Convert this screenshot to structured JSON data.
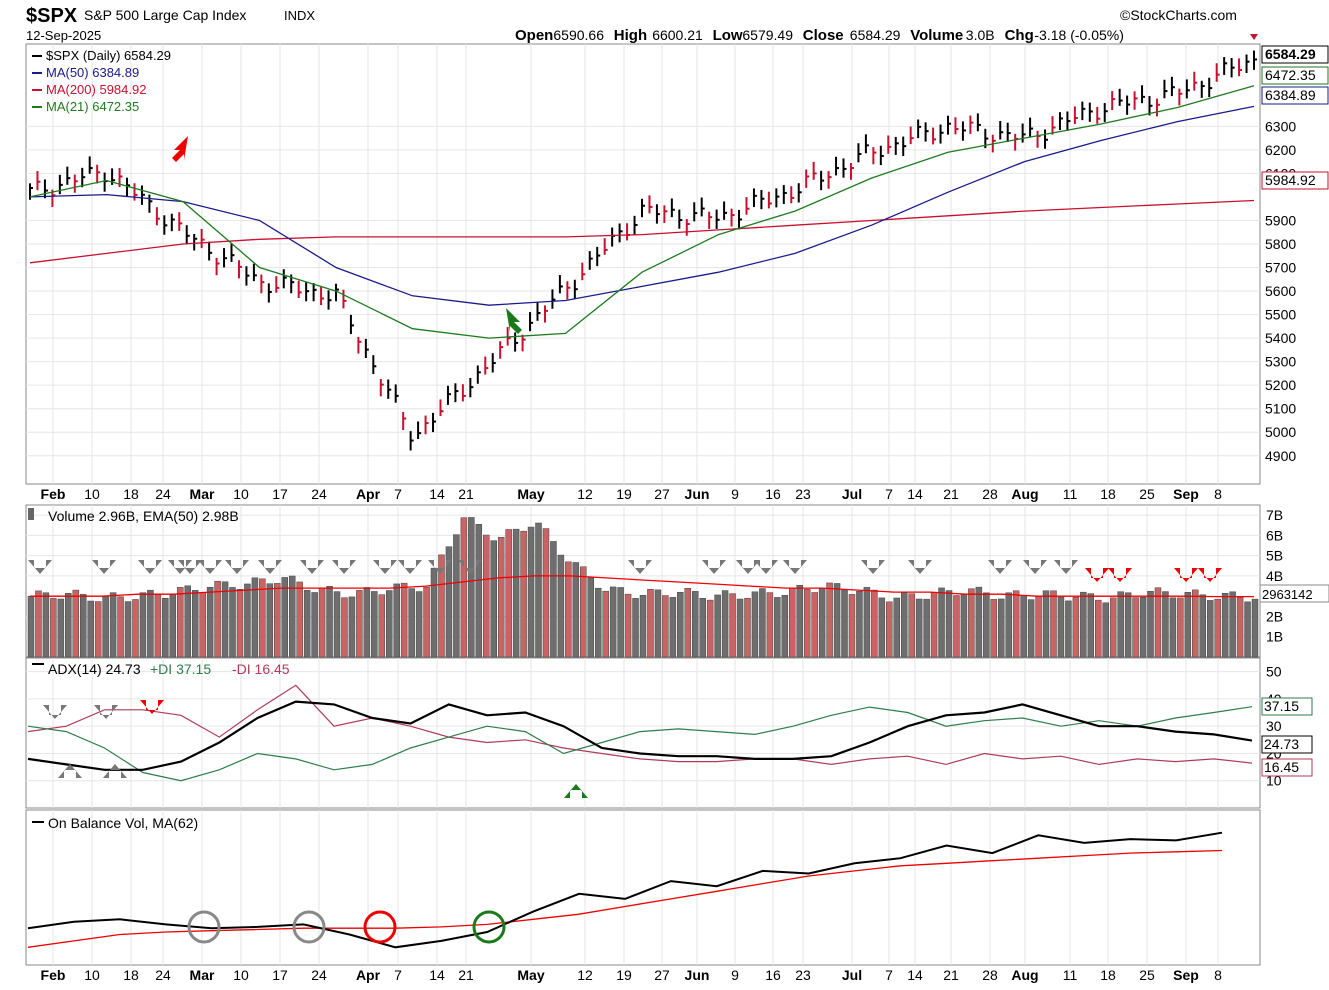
{
  "header": {
    "symbol": "$SPX",
    "name": "S&P 500 Large Cap Index",
    "exchange": "INDX",
    "date": "12-Sep-2025",
    "brand": "©StockCharts.com",
    "ohlc": [
      {
        "label": "Open",
        "value": "6590.66"
      },
      {
        "label": "High",
        "value": "6600.21"
      },
      {
        "label": "Low",
        "value": "6579.49"
      },
      {
        "label": "Close",
        "value": "6584.29"
      },
      {
        "label": "Volume",
        "value": "3.0B"
      },
      {
        "label": "Chg",
        "value": "-3.18 (-0.05%)"
      }
    ]
  },
  "price_panel": {
    "legend": [
      {
        "text": "$SPX (Daily) 6584.29",
        "color": "#000000"
      },
      {
        "text": "MA(50) 6384.89",
        "color": "#1a1a8c"
      },
      {
        "text": "MA(200) 5984.92",
        "color": "#c8102e"
      },
      {
        "text": "MA(21) 6472.35",
        "color": "#1f7a1f"
      }
    ],
    "badges": [
      "6584.29",
      "6472.35",
      "6384.89",
      "5984.92"
    ],
    "axis_ticks": [
      "6300",
      "6200",
      "6100",
      "5900",
      "5800",
      "5700",
      "5600",
      "5500",
      "5400",
      "5300",
      "5200",
      "5100",
      "5000",
      "4900"
    ]
  },
  "volume_panel": {
    "legend": "Volume 2.96B, EMA(50) 2.98B",
    "badge": "2963142",
    "axis_ticks": [
      "7B",
      "6B",
      "5B",
      "4B",
      "2B",
      "1B"
    ]
  },
  "adx_panel": {
    "legend_adx": "ADX(14) 24.73",
    "legend_pdi": "+DI 37.15",
    "legend_mdi": "-DI 16.45",
    "badges": [
      "37.15",
      "24.73",
      "16.45"
    ],
    "axis_ticks": [
      "50",
      "40",
      "30",
      "20",
      "10"
    ]
  },
  "obv_panel": {
    "legend": "On Balance Vol, MA(62)"
  },
  "date_axis": [
    "Feb",
    "10",
    "18",
    "24",
    "Mar",
    "10",
    "17",
    "24",
    "Apr",
    "7",
    "14",
    "21",
    "May",
    "12",
    "19",
    "27",
    "Jun",
    "9",
    "16",
    "23",
    "Jul",
    "7",
    "14",
    "21",
    "28",
    "Aug",
    "11",
    "18",
    "25",
    "Sep",
    "8"
  ],
  "colors": {
    "up": "#000000",
    "down": "#c8102e",
    "ma50": "#1a1a8c",
    "ma200": "#c8102e",
    "ma21": "#1f7a1f",
    "vol_down": "#c86464",
    "vol_up": "#6e6e6e",
    "grid": "#e6e6e6"
  },
  "chart_data": [
    {
      "type": "line",
      "title": "$SPX (Daily)",
      "x_range": [
        "Feb",
        "Sep 12"
      ],
      "ylim": [
        4800,
        6650
      ],
      "series": [
        {
          "name": "$SPX (Daily)",
          "x": [
            "Feb",
            "Feb 18",
            "Mar",
            "Mar 17",
            "Apr",
            "Apr 7",
            "Apr 21",
            "May",
            "May 19",
            "Jun",
            "Jun 23",
            "Jul",
            "Jul 21",
            "Aug",
            "Aug 11",
            "Aug 25",
            "Sep 12"
          ],
          "values": [
            6020,
            6110,
            5850,
            5640,
            5580,
            4980,
            5290,
            5610,
            5940,
            5910,
            6030,
            6190,
            6300,
            6250,
            6380,
            6440,
            6584.29
          ]
        },
        {
          "name": "MA(50)",
          "values": [
            6000,
            6010,
            5980,
            5900,
            5700,
            5580,
            5540,
            5560,
            5620,
            5680,
            5760,
            5880,
            6020,
            6150,
            6240,
            6320,
            6384.89
          ]
        },
        {
          "name": "MA(200)",
          "values": [
            5720,
            5760,
            5800,
            5820,
            5830,
            5830,
            5830,
            5830,
            5840,
            5860,
            5880,
            5900,
            5920,
            5940,
            5955,
            5970,
            5984.92
          ]
        },
        {
          "name": "MA(21)",
          "values": [
            6000,
            6070,
            5980,
            5700,
            5600,
            5440,
            5400,
            5420,
            5680,
            5840,
            5940,
            6080,
            6190,
            6250,
            6310,
            6380,
            6472.35
          ]
        }
      ]
    },
    {
      "type": "bar",
      "title": "Volume",
      "ylim": [
        0,
        7
      ],
      "series": [
        {
          "name": "Volume",
          "values": [
            3.0,
            3.1,
            2.9,
            3.0,
            3.2,
            3.5,
            3.6,
            3.9,
            3.3,
            3.1,
            3.4,
            3.5,
            6.9,
            5.8,
            6.7,
            4.7,
            3.3,
            3.1,
            3.2,
            3.0,
            3.1,
            3.2,
            3.5,
            3.3,
            2.9,
            3.1,
            3.3,
            3.0,
            3.1,
            3.0,
            2.9,
            3.2,
            3.1,
            3.0,
            2.96
          ]
        },
        {
          "name": "EMA(50)",
          "values": [
            3.0,
            3.0,
            3.0,
            3.1,
            3.1,
            3.2,
            3.3,
            3.4,
            3.4,
            3.4,
            3.4,
            3.5,
            3.7,
            3.9,
            4.0,
            4.0,
            3.9,
            3.8,
            3.7,
            3.6,
            3.5,
            3.4,
            3.4,
            3.3,
            3.2,
            3.2,
            3.1,
            3.1,
            3.0,
            3.0,
            3.0,
            3.0,
            3.0,
            2.98,
            2.98
          ]
        }
      ]
    },
    {
      "type": "line",
      "title": "ADX(14)",
      "ylim": [
        0,
        50
      ],
      "series": [
        {
          "name": "ADX(14)",
          "values": [
            18,
            16,
            14,
            14,
            17,
            24,
            33,
            39,
            38,
            33,
            31,
            38,
            34,
            35,
            30,
            22,
            20,
            19,
            19,
            18,
            18,
            19,
            24,
            30,
            34,
            35,
            38,
            34,
            30,
            30,
            28,
            27,
            24.73
          ]
        },
        {
          "name": "+DI",
          "values": [
            30,
            28,
            22,
            13,
            10,
            14,
            20,
            18,
            14,
            16,
            22,
            26,
            30,
            28,
            20,
            24,
            28,
            29,
            28,
            27,
            30,
            34,
            37,
            35,
            30,
            32,
            33,
            30,
            32,
            30,
            33,
            35,
            37.15
          ]
        },
        {
          "name": "-DI",
          "values": [
            28,
            30,
            36,
            36,
            34,
            26,
            36,
            45,
            30,
            33,
            30,
            26,
            24,
            25,
            22,
            20,
            18,
            17,
            17,
            18,
            18,
            16,
            18,
            19,
            16,
            20,
            18,
            19,
            16,
            18,
            17,
            18,
            16.45
          ]
        }
      ]
    },
    {
      "type": "line",
      "title": "On Balance Vol",
      "series": [
        {
          "name": "On Balance Vol",
          "values": [
            0.55,
            0.6,
            0.62,
            0.58,
            0.55,
            0.56,
            0.58,
            0.5,
            0.4,
            0.45,
            0.52,
            0.68,
            0.82,
            0.78,
            0.92,
            0.88,
            1.0,
            0.98,
            1.06,
            1.1,
            1.2,
            1.14,
            1.28,
            1.22,
            1.25,
            1.24,
            1.3
          ]
        },
        {
          "name": "MA(62)",
          "values": [
            0.4,
            0.45,
            0.5,
            0.52,
            0.53,
            0.54,
            0.55,
            0.55,
            0.55,
            0.56,
            0.58,
            0.62,
            0.66,
            0.72,
            0.78,
            0.84,
            0.9,
            0.96,
            1.0,
            1.04,
            1.06,
            1.08,
            1.1,
            1.12,
            1.14,
            1.15,
            1.16
          ]
        }
      ]
    }
  ]
}
